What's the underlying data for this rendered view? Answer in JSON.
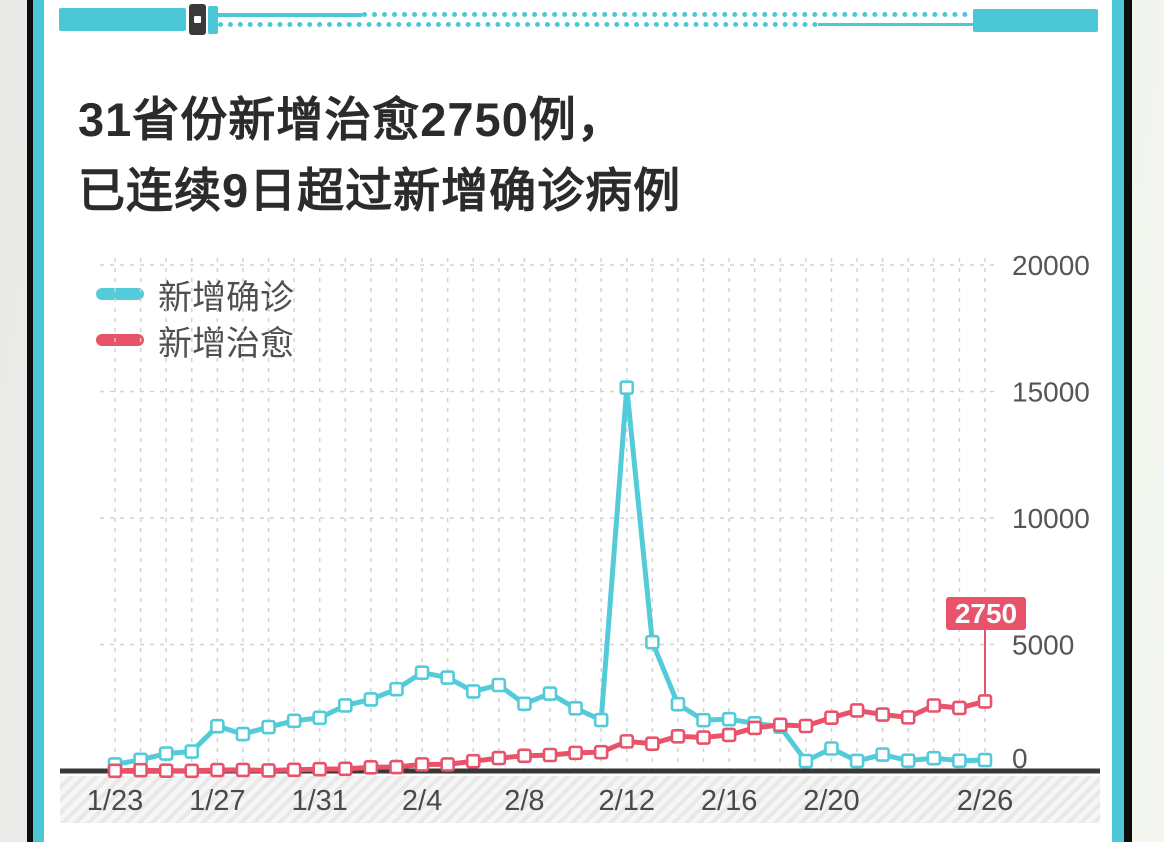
{
  "card": {
    "background": "#ffffff",
    "frame_black": "#0d0d0d",
    "frame_cyan": "#4cc7d5"
  },
  "decoration": {
    "name": "stethoscope-band",
    "color": "#4cc7d5",
    "clip_color": "#3a3a3a"
  },
  "title": {
    "line1": "31省份新增治愈2750例，",
    "line2": "已连续9日超过新增确诊病例",
    "color": "#2b2b2b"
  },
  "legend": {
    "position": "top-left",
    "items": [
      {
        "label": "新增确诊",
        "color": "#53cbd8"
      },
      {
        "label": "新增治愈",
        "color": "#e8536a"
      }
    ]
  },
  "chart_data": {
    "type": "line",
    "title": "31省份新增治愈2750例，已连续9日超过新增确诊病例",
    "x": [
      "1/23",
      "1/24",
      "1/25",
      "1/26",
      "1/27",
      "1/28",
      "1/29",
      "1/30",
      "1/31",
      "2/1",
      "2/2",
      "2/3",
      "2/4",
      "2/5",
      "2/6",
      "2/7",
      "2/8",
      "2/9",
      "2/10",
      "2/11",
      "2/12",
      "2/13",
      "2/14",
      "2/15",
      "2/16",
      "2/17",
      "2/18",
      "2/19",
      "2/20",
      "2/21",
      "2/22",
      "2/23",
      "2/24",
      "2/25",
      "2/26"
    ],
    "x_tick_labels": [
      "1/23",
      "1/27",
      "1/31",
      "2/4",
      "2/8",
      "2/12",
      "2/16",
      "2/20",
      "2/26"
    ],
    "x_tick_indices": [
      0,
      4,
      8,
      12,
      16,
      20,
      24,
      28,
      34
    ],
    "series": [
      {
        "name": "新增确诊",
        "color": "#53cbd8",
        "marker": "open-square",
        "values": [
          259,
          444,
          688,
          769,
          1771,
          1459,
          1737,
          1982,
          2102,
          2590,
          2829,
          3235,
          3887,
          3694,
          3143,
          3399,
          2656,
          3062,
          2478,
          2015,
          15152,
          5090,
          2641,
          2009,
          2048,
          1886,
          1749,
          394,
          889,
          397,
          648,
          409,
          508,
          406,
          433
        ]
      },
      {
        "name": "新增治愈",
        "color": "#e8536a",
        "marker": "open-square",
        "values": [
          6,
          31,
          11,
          9,
          38,
          43,
          21,
          47,
          72,
          85,
          147,
          157,
          262,
          261,
          387,
          510,
          600,
          632,
          716,
          744,
          1171,
          1081,
          1373,
          1323,
          1425,
          1701,
          1824,
          1779,
          2109,
          2393,
          2230,
          2120,
          2589,
          2491,
          2750
        ]
      }
    ],
    "ylim": [
      0,
      20000
    ],
    "yticks": [
      0,
      5000,
      10000,
      15000,
      20000
    ],
    "grid": true,
    "grid_color": "#d2d2d2",
    "axis_color": "#383838",
    "tick_label_color": "#555555",
    "x_band_texture": "diagonal-hatch",
    "annotation": {
      "label": "2750",
      "x": "2/26",
      "series": "新增治愈",
      "value": 2750,
      "box_color": "#e8536a",
      "text_color": "#ffffff"
    }
  }
}
